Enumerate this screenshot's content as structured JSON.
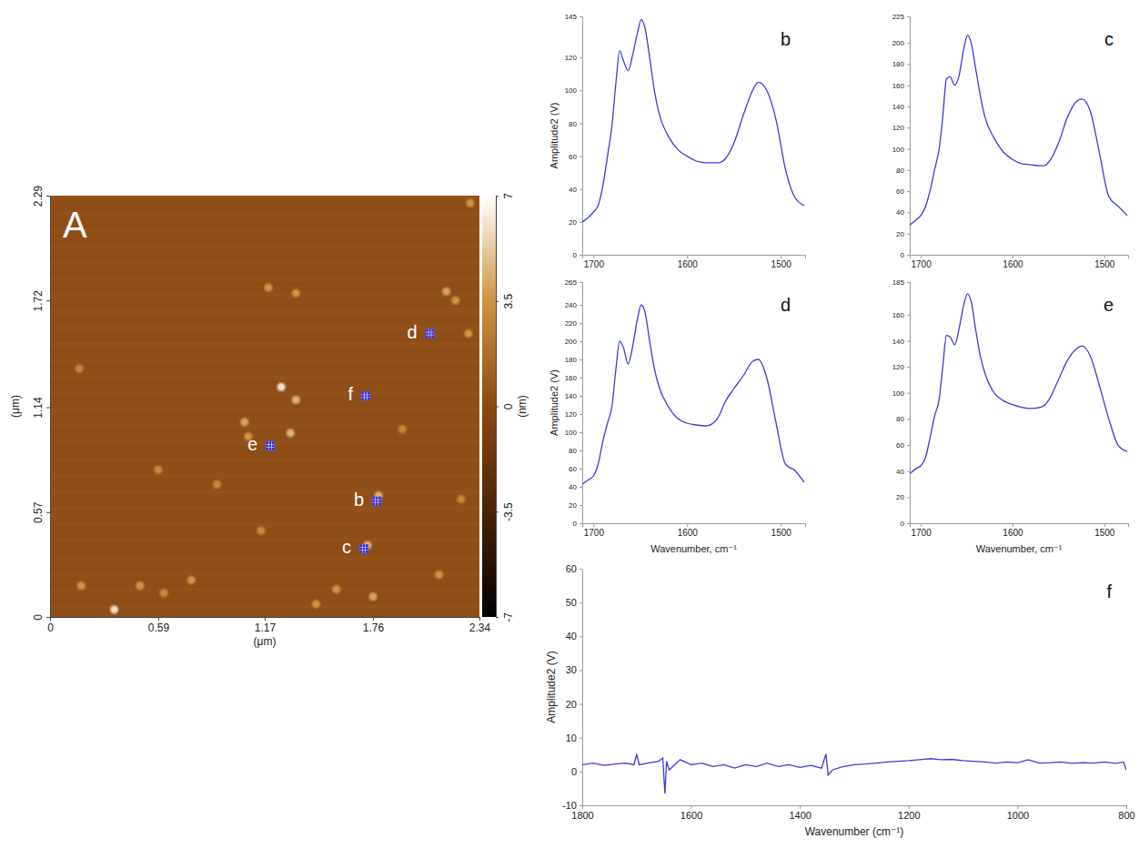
{
  "chart_data": [
    {
      "type": "afm_image",
      "title": "A",
      "xlabel": "(μm)",
      "ylabel": "(μm)",
      "xlim": [
        0,
        2.34
      ],
      "ylim": [
        0,
        2.29
      ],
      "xticks": [
        0,
        0.59,
        1.17,
        1.76,
        2.34
      ],
      "yticks": [
        0,
        0.57,
        1.14,
        1.72,
        2.29
      ],
      "colorbar": {
        "label": "(nm)",
        "range": [
          -7,
          7
        ],
        "ticks": [
          -7,
          -3.5,
          0,
          3.5,
          7
        ]
      },
      "points": [
        {
          "label": "b",
          "x": 1.78,
          "y": 0.63
        },
        {
          "label": "c",
          "x": 1.71,
          "y": 0.37
        },
        {
          "label": "d",
          "x": 2.07,
          "y": 1.54
        },
        {
          "label": "e",
          "x": 1.2,
          "y": 0.93
        },
        {
          "label": "f",
          "x": 1.72,
          "y": 1.2
        }
      ],
      "particles": [
        {
          "x": 1.26,
          "y": 1.25,
          "height": 6
        },
        {
          "x": 1.34,
          "y": 1.18,
          "height": 4.5
        },
        {
          "x": 1.31,
          "y": 1.0,
          "height": 4.5
        },
        {
          "x": 1.06,
          "y": 1.06,
          "height": 4
        },
        {
          "x": 1.08,
          "y": 0.98,
          "height": 3.5
        },
        {
          "x": 0.35,
          "y": 0.04,
          "height": 6
        },
        {
          "x": 2.16,
          "y": 1.77,
          "height": 4
        },
        {
          "x": 2.28,
          "y": 1.54,
          "height": 3.5
        },
        {
          "x": 2.21,
          "y": 1.72,
          "height": 3.5
        },
        {
          "x": 1.19,
          "y": 1.79,
          "height": 3.5
        },
        {
          "x": 1.34,
          "y": 1.76,
          "height": 3.5
        },
        {
          "x": 1.76,
          "y": 0.11,
          "height": 4
        },
        {
          "x": 1.56,
          "y": 0.15,
          "height": 3.5
        },
        {
          "x": 1.45,
          "y": 0.07,
          "height": 3.5
        },
        {
          "x": 0.77,
          "y": 0.2,
          "height": 3.5
        },
        {
          "x": 0.49,
          "y": 0.17,
          "height": 3.5
        },
        {
          "x": 0.17,
          "y": 0.17,
          "height": 3.5
        },
        {
          "x": 2.12,
          "y": 0.23,
          "height": 3.5
        },
        {
          "x": 2.29,
          "y": 2.25,
          "height": 3.5
        },
        {
          "x": 0.91,
          "y": 0.72,
          "height": 3
        },
        {
          "x": 0.59,
          "y": 0.8,
          "height": 3
        },
        {
          "x": 2.24,
          "y": 0.64,
          "height": 3
        },
        {
          "x": 0.16,
          "y": 1.35,
          "height": 3
        },
        {
          "x": 1.92,
          "y": 1.02,
          "height": 3
        },
        {
          "x": 1.15,
          "y": 0.47,
          "height": 3
        },
        {
          "x": 1.79,
          "y": 0.66,
          "height": 4.5
        },
        {
          "x": 1.73,
          "y": 0.39,
          "height": 4.5
        },
        {
          "x": 0.62,
          "y": 0.13,
          "height": 3
        }
      ]
    },
    {
      "type": "line",
      "title": "b",
      "ylabel": "Amplitude2 (V)",
      "xlim": [
        1712,
        1474
      ],
      "ylim": [
        0,
        145
      ],
      "xticks": [
        1700,
        1600,
        1500
      ],
      "yticks": [
        0,
        20,
        40,
        60,
        80,
        100,
        120,
        145
      ],
      "x": [
        1712,
        1705,
        1700,
        1695,
        1690,
        1685,
        1680,
        1676,
        1672,
        1668,
        1663,
        1658,
        1653,
        1649,
        1645,
        1640,
        1635,
        1630,
        1620,
        1610,
        1600,
        1590,
        1580,
        1570,
        1566,
        1560,
        1550,
        1540,
        1530,
        1524,
        1515,
        1505,
        1495,
        1485,
        1475
      ],
      "series": [
        {
          "color": "#3b3bdb",
          "line_style": "smooth",
          "values": [
            20,
            23,
            26,
            30,
            42,
            60,
            80,
            105,
            124,
            118,
            112,
            122,
            135,
            143,
            138,
            120,
            100,
            86,
            72,
            64,
            60,
            57,
            56,
            56,
            56,
            58,
            68,
            85,
            100,
            105,
            100,
            82,
            52,
            35,
            30
          ]
        }
      ]
    },
    {
      "type": "line",
      "title": "c",
      "xlim": [
        1712,
        1474
      ],
      "ylim": [
        0,
        225
      ],
      "xticks": [
        1700,
        1600,
        1500
      ],
      "yticks": [
        0,
        20,
        40,
        60,
        80,
        100,
        120,
        140,
        160,
        180,
        200,
        225
      ],
      "x": [
        1712,
        1705,
        1700,
        1695,
        1690,
        1685,
        1680,
        1676,
        1672,
        1668,
        1663,
        1658,
        1653,
        1649,
        1645,
        1640,
        1635,
        1630,
        1620,
        1610,
        1600,
        1590,
        1580,
        1570,
        1566,
        1560,
        1550,
        1540,
        1530,
        1524,
        1515,
        1505,
        1495,
        1485,
        1475
      ],
      "series": [
        {
          "color": "#3b3bdb",
          "line_style": "smooth",
          "values": [
            28,
            33,
            37,
            45,
            60,
            80,
            100,
            130,
            166,
            168,
            160,
            170,
            195,
            207,
            200,
            175,
            150,
            130,
            110,
            97,
            90,
            86,
            85,
            84,
            84,
            88,
            105,
            130,
            145,
            147,
            135,
            95,
            55,
            46,
            37
          ]
        }
      ]
    },
    {
      "type": "line",
      "title": "d",
      "xlabel": "Wavenumber, cm⁻¹",
      "ylabel": "Amplitude2 (V)",
      "xlim": [
        1712,
        1474
      ],
      "ylim": [
        0,
        265
      ],
      "xticks": [
        1700,
        1600,
        1500
      ],
      "yticks": [
        0,
        20,
        40,
        60,
        80,
        100,
        120,
        140,
        160,
        180,
        200,
        220,
        240,
        265
      ],
      "x": [
        1712,
        1705,
        1700,
        1695,
        1690,
        1685,
        1680,
        1676,
        1672,
        1668,
        1663,
        1658,
        1653,
        1649,
        1645,
        1640,
        1635,
        1630,
        1620,
        1610,
        1600,
        1590,
        1580,
        1570,
        1566,
        1560,
        1550,
        1540,
        1530,
        1524,
        1515,
        1505,
        1495,
        1485,
        1475
      ],
      "series": [
        {
          "color": "#3b3bdb",
          "line_style": "smooth",
          "values": [
            43,
            48,
            52,
            65,
            90,
            110,
            130,
            170,
            200,
            193,
            175,
            195,
            225,
            240,
            232,
            200,
            170,
            150,
            128,
            115,
            110,
            108,
            107,
            112,
            118,
            132,
            148,
            162,
            178,
            180,
            160,
            110,
            65,
            58,
            45
          ]
        }
      ]
    },
    {
      "type": "line",
      "title": "e",
      "xlabel": "Wavenumber, cm⁻¹",
      "xlim": [
        1712,
        1474
      ],
      "ylim": [
        0,
        185
      ],
      "xticks": [
        1700,
        1600,
        1500
      ],
      "yticks": [
        0,
        20,
        40,
        60,
        80,
        100,
        120,
        140,
        160,
        185
      ],
      "x": [
        1712,
        1705,
        1700,
        1695,
        1690,
        1685,
        1680,
        1676,
        1672,
        1668,
        1663,
        1658,
        1653,
        1649,
        1645,
        1640,
        1635,
        1630,
        1620,
        1610,
        1600,
        1590,
        1580,
        1570,
        1566,
        1560,
        1550,
        1540,
        1530,
        1524,
        1515,
        1505,
        1495,
        1485,
        1475
      ],
      "series": [
        {
          "color": "#3b3bdb",
          "line_style": "smooth",
          "values": [
            38,
            42,
            44,
            50,
            65,
            82,
            95,
            120,
            144,
            143,
            137,
            150,
            168,
            176,
            170,
            148,
            128,
            115,
            100,
            94,
            91,
            89,
            88,
            89,
            90,
            95,
            110,
            125,
            134,
            136,
            128,
            105,
            80,
            60,
            55
          ]
        }
      ]
    },
    {
      "type": "line",
      "title": "f",
      "xlabel": "Wavenumber (cm⁻¹)",
      "ylabel": "Amplitude2 (V)",
      "xlim": [
        1800,
        800
      ],
      "ylim": [
        -10,
        60
      ],
      "xticks": [
        1800,
        1600,
        1400,
        1200,
        1000,
        800
      ],
      "yticks": [
        -10,
        0,
        10,
        20,
        30,
        40,
        50,
        60
      ],
      "x": [
        1800,
        1780,
        1760,
        1740,
        1720,
        1705,
        1700,
        1695,
        1680,
        1660,
        1652,
        1648,
        1645,
        1640,
        1620,
        1600,
        1580,
        1560,
        1540,
        1520,
        1500,
        1480,
        1460,
        1440,
        1420,
        1400,
        1380,
        1360,
        1352,
        1348,
        1340,
        1320,
        1300,
        1280,
        1260,
        1240,
        1220,
        1200,
        1180,
        1160,
        1140,
        1120,
        1100,
        1080,
        1060,
        1040,
        1020,
        1000,
        980,
        960,
        940,
        920,
        900,
        880,
        860,
        840,
        820,
        805,
        800
      ],
      "series": [
        {
          "color": "#3b3bdb",
          "line_style": "solid",
          "values": [
            2,
            2.5,
            1.8,
            2.2,
            2.5,
            2,
            5,
            2,
            2.5,
            3,
            4,
            -6.5,
            3,
            0.5,
            3.5,
            2,
            2.5,
            1.5,
            2,
            1,
            2,
            1.5,
            2.5,
            1.5,
            2,
            1.2,
            1.8,
            1,
            5.2,
            -1,
            0.5,
            1.5,
            2,
            2.2,
            2.5,
            2.8,
            3,
            3.2,
            3.5,
            3.8,
            3.5,
            3.6,
            3.2,
            3,
            2.8,
            2.5,
            2.8,
            2.6,
            3.5,
            2.5,
            2.6,
            2.8,
            2.4,
            2.6,
            2.5,
            2.8,
            2.4,
            2.8,
            0.5
          ]
        }
      ]
    }
  ]
}
